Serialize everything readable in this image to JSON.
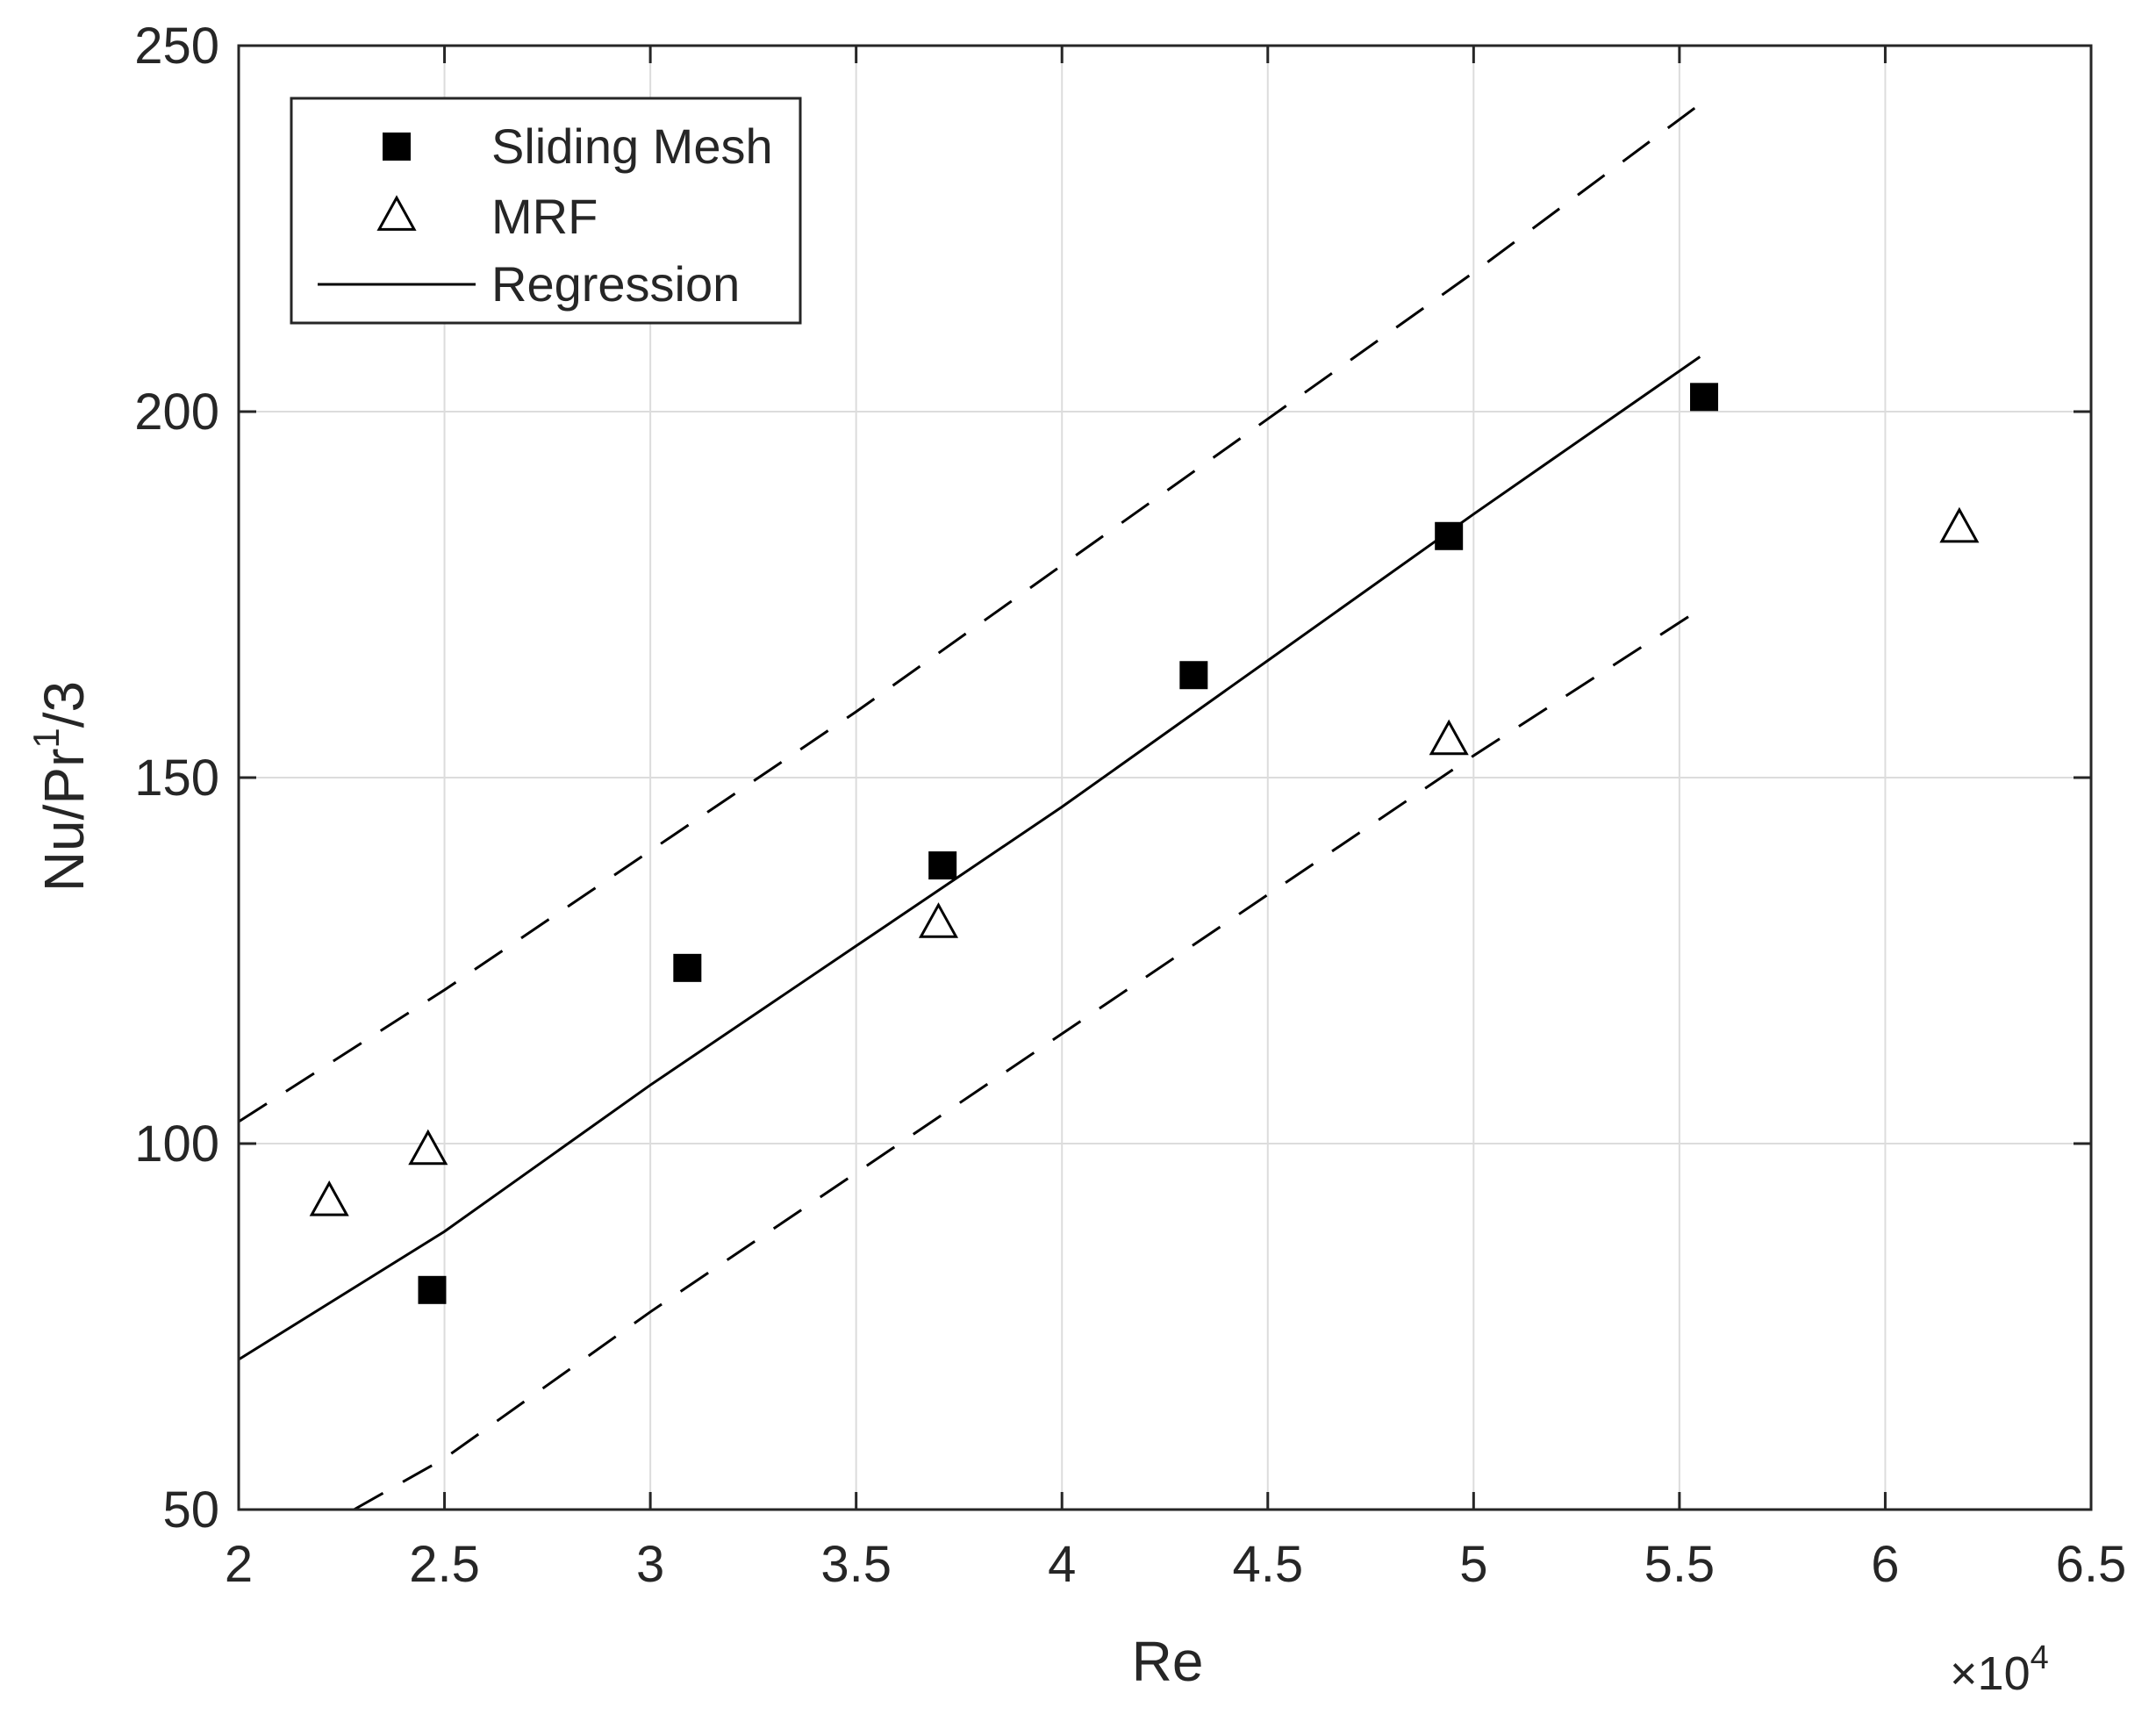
{
  "chart_data": {
    "type": "scatter",
    "title": "",
    "xlabel": "Re",
    "ylabel_parts": {
      "base": "Nu/Pr",
      "sup": "1",
      "tail": "/3"
    },
    "x_multiplier": {
      "times": "×",
      "base": "10",
      "exp": "4"
    },
    "xlim": [
      2,
      6.5
    ],
    "ylim": [
      50,
      250
    ],
    "xticks": [
      2,
      2.5,
      3,
      3.5,
      4,
      4.5,
      5,
      5.5,
      6,
      6.5
    ],
    "xtick_labels": [
      "2",
      "2.5",
      "3",
      "3.5",
      "4",
      "4.5",
      "5",
      "5.5",
      "6",
      "6.5"
    ],
    "yticks": [
      50,
      100,
      150,
      200,
      250
    ],
    "ytick_labels": [
      "50",
      "100",
      "150",
      "200",
      "250"
    ],
    "grid": true,
    "legend_position": "top-left",
    "series": [
      {
        "name": "Sliding Mesh",
        "marker": "filled-square",
        "color": "#000000",
        "points": [
          {
            "x": 2.47,
            "y": 80
          },
          {
            "x": 3.09,
            "y": 124
          },
          {
            "x": 3.71,
            "y": 138
          },
          {
            "x": 4.32,
            "y": 164
          },
          {
            "x": 4.94,
            "y": 183
          },
          {
            "x": 5.56,
            "y": 202
          }
        ]
      },
      {
        "name": "MRF",
        "marker": "open-triangle",
        "color": "#000000",
        "points": [
          {
            "x": 2.22,
            "y": 92
          },
          {
            "x": 2.46,
            "y": 99
          },
          {
            "x": 3.7,
            "y": 130
          },
          {
            "x": 4.94,
            "y": 155
          },
          {
            "x": 6.18,
            "y": 184
          }
        ]
      }
    ],
    "lines": [
      {
        "name": "Regression",
        "style": "solid",
        "color": "#000000",
        "points": [
          {
            "x": 2.0,
            "y": 70.5
          },
          {
            "x": 2.5,
            "y": 88
          },
          {
            "x": 3.0,
            "y": 108
          },
          {
            "x": 3.5,
            "y": 127
          },
          {
            "x": 4.0,
            "y": 146
          },
          {
            "x": 4.5,
            "y": 166
          },
          {
            "x": 5.0,
            "y": 186
          },
          {
            "x": 5.55,
            "y": 207.5
          }
        ]
      },
      {
        "name": "",
        "style": "dashed",
        "color": "#000000",
        "points": [
          {
            "x": 2.0,
            "y": 103
          },
          {
            "x": 2.5,
            "y": 121
          },
          {
            "x": 3.0,
            "y": 140
          },
          {
            "x": 3.5,
            "y": 159
          },
          {
            "x": 4.0,
            "y": 179
          },
          {
            "x": 4.5,
            "y": 199
          },
          {
            "x": 5.0,
            "y": 219
          },
          {
            "x": 5.55,
            "y": 242
          }
        ]
      },
      {
        "name": "",
        "style": "dashed",
        "color": "#000000",
        "points": [
          {
            "x": 2.28,
            "y": 50
          },
          {
            "x": 2.5,
            "y": 57
          },
          {
            "x": 3.0,
            "y": 77
          },
          {
            "x": 3.5,
            "y": 96
          },
          {
            "x": 4.0,
            "y": 115
          },
          {
            "x": 4.5,
            "y": 134
          },
          {
            "x": 5.0,
            "y": 153
          },
          {
            "x": 5.55,
            "y": 173
          }
        ]
      }
    ],
    "legend": [
      {
        "label": "Sliding Mesh",
        "marker": "filled-square"
      },
      {
        "label": "MRF",
        "marker": "open-triangle"
      },
      {
        "label": "Regression",
        "marker": "solid-line"
      }
    ]
  }
}
